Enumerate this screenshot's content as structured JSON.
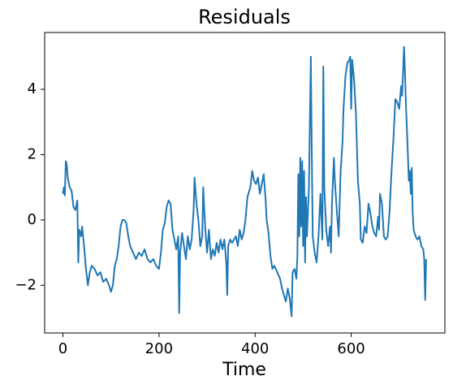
{
  "chart_data": {
    "type": "line",
    "title": "Residuals",
    "xlabel": "Time",
    "xlim": [
      -38,
      795
    ],
    "ylim": [
      -3.46,
      5.74
    ],
    "xticks": [
      0,
      200,
      400,
      600
    ],
    "yticks": [
      {
        "value": -2,
        "label": "−2"
      },
      0,
      2,
      4
    ],
    "grid": false,
    "series": [
      {
        "color": "#1f77b4",
        "x": [
          0,
          2,
          4,
          6,
          8,
          10,
          14,
          18,
          22,
          26,
          30,
          32,
          34,
          38,
          40,
          44,
          48,
          52,
          56,
          60,
          66,
          72,
          78,
          84,
          90,
          96,
          100,
          104,
          108,
          112,
          116,
          120,
          124,
          128,
          132,
          136,
          140,
          146,
          152,
          158,
          164,
          170,
          176,
          182,
          188,
          194,
          200,
          204,
          208,
          212,
          216,
          220,
          224,
          228,
          232,
          236,
          240,
          242,
          244,
          248,
          252,
          256,
          260,
          264,
          268,
          272,
          274,
          278,
          282,
          286,
          290,
          292,
          296,
          300,
          304,
          308,
          312,
          316,
          320,
          324,
          328,
          332,
          336,
          340,
          342,
          344,
          348,
          352,
          356,
          360,
          364,
          368,
          372,
          376,
          380,
          384,
          390,
          394,
          398,
          402,
          406,
          410,
          414,
          418,
          422,
          424,
          426,
          428,
          432,
          436,
          440,
          446,
          452,
          456,
          460,
          464,
          468,
          472,
          476,
          478,
          482,
          486,
          488,
          490,
          492,
          494,
          496,
          498,
          500,
          502,
          504,
          506,
          508,
          512,
          516,
          518,
          520,
          524,
          528,
          532,
          536,
          540,
          542,
          544,
          548,
          552,
          556,
          558,
          560,
          564,
          566,
          570,
          574,
          578,
          582,
          584,
          588,
          592,
          596,
          598,
          600,
          602,
          606,
          610,
          614,
          618,
          620,
          624,
          628,
          632,
          636,
          640,
          644,
          648,
          652,
          656,
          658,
          660,
          664,
          668,
          672,
          676,
          680,
          684,
          688,
          692,
          696,
          700,
          704,
          706,
          710,
          712,
          714,
          716,
          720,
          722,
          724,
          726,
          728,
          730,
          734,
          738,
          742,
          746,
          750,
          752,
          754,
          756
        ],
        "values": [
          0.8,
          1.0,
          0.75,
          1.8,
          1.7,
          1.3,
          1.0,
          0.9,
          0.4,
          0.3,
          0.6,
          -1.3,
          -0.3,
          -0.5,
          -0.2,
          -0.8,
          -1.5,
          -2.0,
          -1.6,
          -1.4,
          -1.5,
          -1.7,
          -1.6,
          -1.9,
          -1.8,
          -2.0,
          -2.2,
          -2.0,
          -1.4,
          -1.2,
          -0.8,
          -0.2,
          0.0,
          0.0,
          -0.1,
          -0.5,
          -0.8,
          -1.0,
          -1.2,
          -1.0,
          -1.1,
          -0.9,
          -1.2,
          -1.3,
          -1.2,
          -1.4,
          -1.5,
          -1.0,
          -0.3,
          -0.1,
          0.4,
          0.6,
          0.5,
          -0.3,
          -0.6,
          -0.9,
          -0.5,
          -2.85,
          -1.0,
          -0.4,
          -0.8,
          -1.2,
          -0.5,
          -0.9,
          -0.6,
          0.3,
          1.3,
          0.5,
          0.0,
          -0.8,
          -0.5,
          1.0,
          -0.2,
          -1.0,
          -0.3,
          -1.2,
          -0.9,
          -1.1,
          -0.7,
          -1.0,
          -0.6,
          -0.9,
          -0.6,
          -1.3,
          -2.3,
          -0.8,
          -0.6,
          -0.7,
          -0.6,
          -0.5,
          -0.8,
          -0.3,
          -0.6,
          -0.4,
          0.0,
          0.7,
          1.0,
          1.5,
          1.2,
          1.1,
          1.3,
          0.8,
          1.1,
          1.4,
          0.6,
          0.0,
          -0.2,
          -0.4,
          -1.1,
          -1.5,
          -1.4,
          -1.6,
          -1.8,
          -2.1,
          -2.3,
          -2.5,
          -2.1,
          -2.4,
          -2.95,
          -1.6,
          -1.5,
          -1.8,
          -1.1,
          1.4,
          -0.5,
          1.9,
          -0.2,
          1.8,
          -0.8,
          1.5,
          -1.3,
          0.7,
          -0.5,
          1.0,
          5.0,
          2.0,
          -0.5,
          -1.0,
          -1.3,
          -0.5,
          0.8,
          -0.6,
          4.7,
          1.0,
          -0.3,
          -0.8,
          -0.2,
          -1.0,
          0.5,
          1.9,
          1.2,
          0.3,
          -0.5,
          1.5,
          2.4,
          3.4,
          4.4,
          4.8,
          4.9,
          5.0,
          3.4,
          4.9,
          4.3,
          3.2,
          1.2,
          0.5,
          -0.6,
          -0.7,
          -0.2,
          -0.4,
          0.5,
          0.2,
          -0.2,
          -0.4,
          -0.5,
          0.1,
          -0.3,
          0.8,
          0.5,
          -0.5,
          -0.6,
          -0.5,
          0.3,
          1.5,
          2.5,
          3.7,
          3.6,
          3.4,
          4.1,
          3.8,
          5.3,
          4.5,
          3.5,
          2.8,
          1.2,
          1.5,
          0.8,
          1.6,
          0.2,
          -0.3,
          -0.5,
          -0.6,
          -0.5,
          -0.8,
          -0.9,
          -1.2,
          -2.45,
          -1.2
        ]
      }
    ]
  }
}
